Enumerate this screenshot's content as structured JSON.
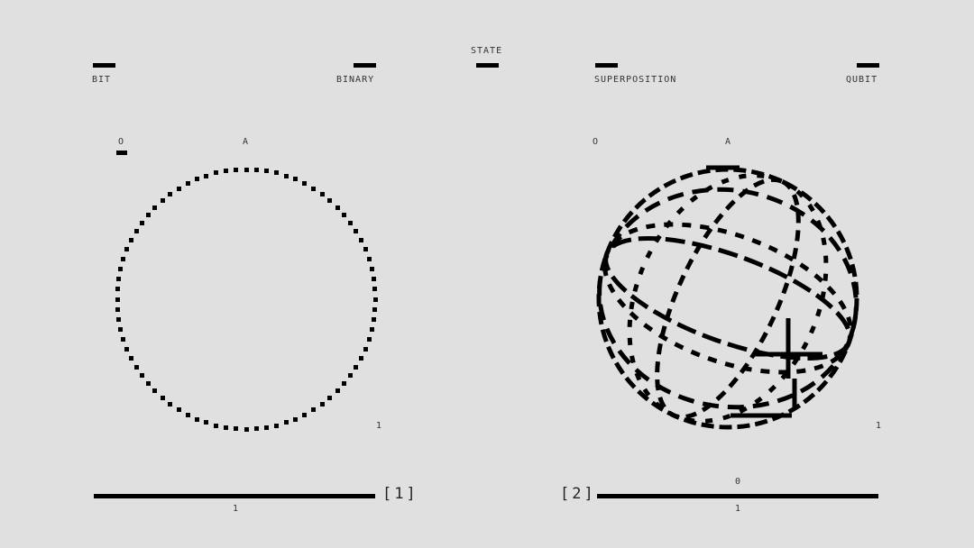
{
  "header": {
    "state": "STATE"
  },
  "left_panel": {
    "label_left": "BIT",
    "label_right": "BINARY",
    "axis_o": "O",
    "axis_a": "A",
    "axis_1": "1",
    "index": "[1]",
    "bottom_label": "1",
    "shape": "dotted-circle"
  },
  "right_panel": {
    "label_left": "SUPERPOSITION",
    "label_right": "QUBIT",
    "axis_o": "O",
    "axis_a": "A",
    "axis_1": "1",
    "index": "[2]",
    "top_label": "0",
    "bottom_label": "1",
    "shape": "wireframe-sphere"
  },
  "colors": {
    "background": "#e0e0e0",
    "ink": "#000000"
  }
}
